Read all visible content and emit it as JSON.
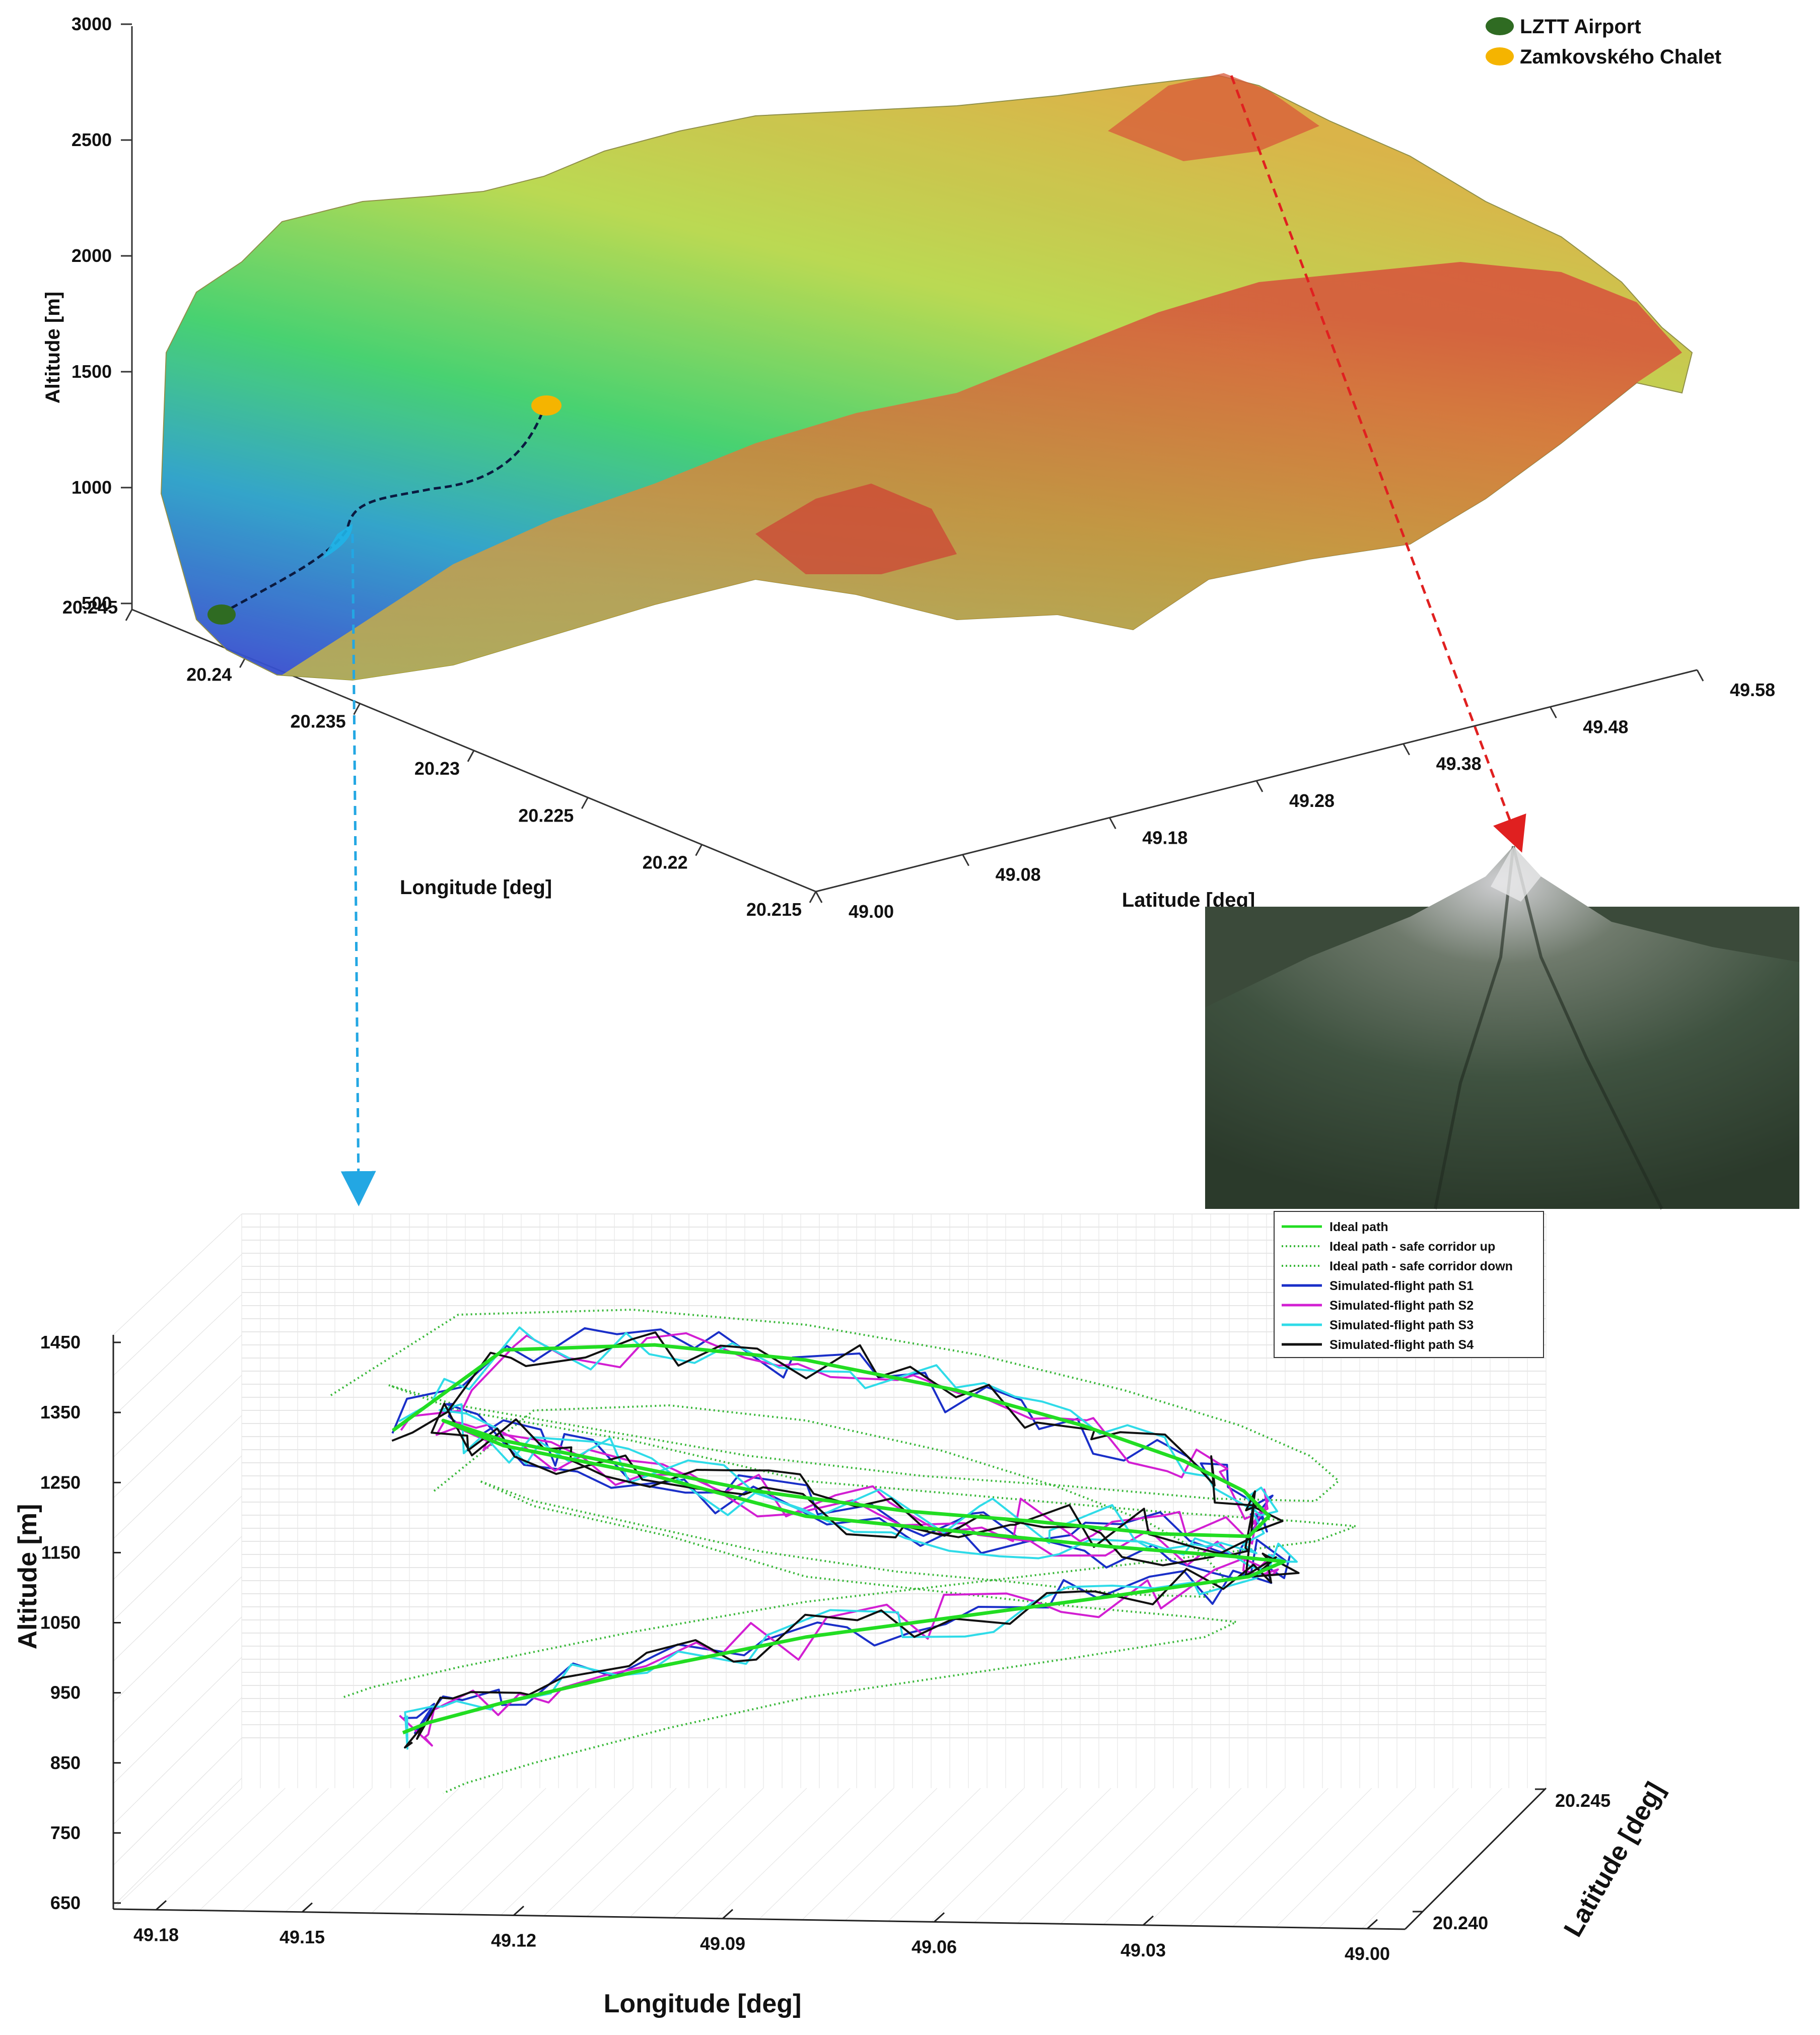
{
  "chart_data": [
    {
      "type": "surface",
      "zlabel": "Altitude [m]",
      "xlabel": "Longitude [deg]",
      "ylabel": "Latitude [deg]",
      "z_ticks": [
        "500",
        "1000",
        "1500",
        "2000",
        "2500",
        "3000"
      ],
      "x_ticks": [
        "20.245",
        "20.24",
        "20.235",
        "20.23",
        "20.225",
        "20.22",
        "20.215"
      ],
      "y_ticks": [
        "49.00",
        "49.08",
        "49.18",
        "49.28",
        "49.38",
        "49.48",
        "49.58"
      ],
      "zlim": [
        500,
        3000
      ],
      "legend_position": "top-right",
      "legend": [
        {
          "label": "LZTT Airport",
          "color": "#2f6b22"
        },
        {
          "label": "Zamkovského Chalet",
          "color": "#f5b400"
        }
      ]
    },
    {
      "type": "line",
      "zlabel": "Altitude [m]",
      "xlabel": "Longitude [deg]",
      "ylabel": "Latitude [deg]",
      "z_ticks": [
        "650",
        "750",
        "850",
        "950",
        "1050",
        "1150",
        "1250",
        "1350",
        "1450"
      ],
      "x_ticks": [
        "49.18",
        "49.15",
        "49.12",
        "49.09",
        "49.06",
        "49.03",
        "49.00"
      ],
      "y_ticks": [
        "20.245",
        "20.240"
      ],
      "zlim": [
        650,
        1450
      ],
      "grid": true,
      "legend_position": "top-right",
      "series": [
        {
          "name": "Ideal path",
          "color": "#22dd22",
          "style": "solid"
        },
        {
          "name": "Ideal path - safe corridor up",
          "color": "#3ab83a",
          "style": "dotted"
        },
        {
          "name": "Ideal path - safe corridor down",
          "color": "#3ab83a",
          "style": "dotted"
        },
        {
          "name": "Simulated-flight path S1",
          "color": "#1a2fc8",
          "style": "solid"
        },
        {
          "name": "Simulated-flight path S2",
          "color": "#d21fd2",
          "style": "solid"
        },
        {
          "name": "Simulated-flight path S3",
          "color": "#2fdbe8",
          "style": "solid"
        },
        {
          "name": "Simulated-flight path S4",
          "color": "#111111",
          "style": "solid"
        }
      ]
    }
  ]
}
